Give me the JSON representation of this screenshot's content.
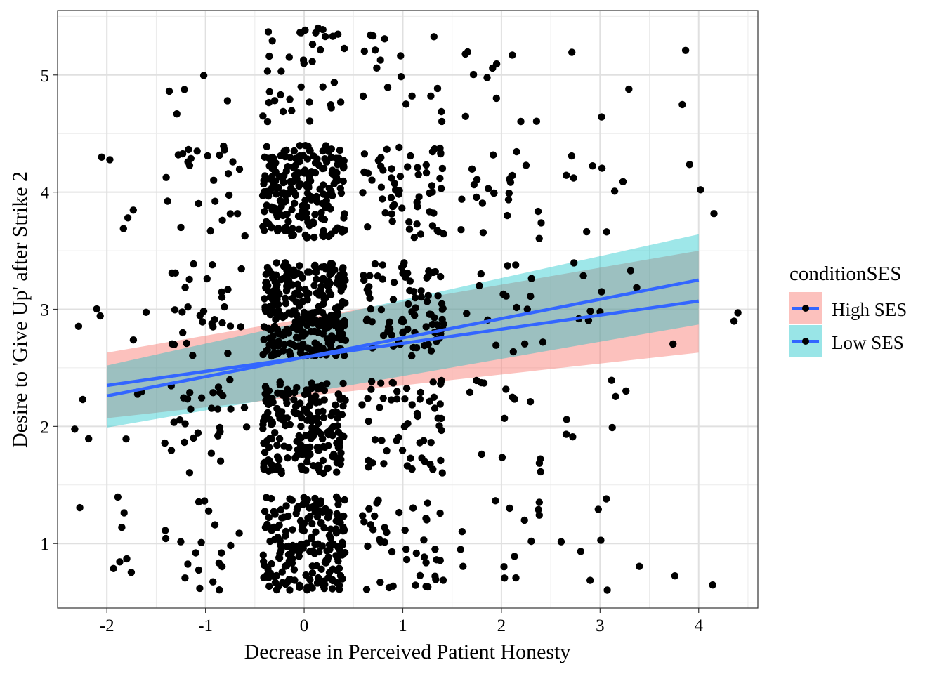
{
  "chart_data": {
    "type": "scatter",
    "title": "",
    "xlabel": "Decrease in Perceived Patient Honesty",
    "ylabel": "Desire to 'Give Up' after Strike 2",
    "xlim": [
      -2.5,
      4.6
    ],
    "ylim": [
      0.45,
      5.55
    ],
    "x_ticks": [
      -2,
      -1,
      0,
      1,
      2,
      3,
      4
    ],
    "y_ticks": [
      1,
      2,
      3,
      4,
      5
    ],
    "x_tick_labels": [
      "-2",
      "-1",
      "0",
      "1",
      "2",
      "3",
      "4"
    ],
    "y_tick_labels": [
      "1",
      "2",
      "3",
      "4",
      "5"
    ],
    "grid": true,
    "legend_position": "right",
    "legend": {
      "title": "conditionSES",
      "entries": [
        {
          "label": "High SES",
          "band_color": "#F8766D"
        },
        {
          "label": "Low SES",
          "band_color": "#00BFC4"
        }
      ]
    },
    "point_color": "#000000",
    "fit_line_color": "#3366FF",
    "regression_lines": [
      {
        "name": "High SES",
        "x": [
          -2,
          4
        ],
        "y": [
          2.35,
          3.07
        ],
        "band_lower": [
          2.07,
          2.63
        ],
        "band_upper": [
          2.63,
          3.5
        ],
        "band_color": "#F8766D"
      },
      {
        "name": "Low SES",
        "x": [
          -2,
          4
        ],
        "y": [
          2.26,
          3.25
        ],
        "band_lower": [
          1.99,
          2.87
        ],
        "band_upper": [
          2.52,
          3.64
        ],
        "band_color": "#00BFC4"
      }
    ],
    "x_jitter": 0.42,
    "y_jitter": 0.4,
    "point_groups": [
      {
        "x": -2,
        "y": 1,
        "n": 8
      },
      {
        "x": -2,
        "y": 2,
        "n": 6
      },
      {
        "x": -2,
        "y": 3,
        "n": 5
      },
      {
        "x": -2,
        "y": 4,
        "n": 5
      },
      {
        "x": -1,
        "y": 1,
        "n": 20
      },
      {
        "x": -1,
        "y": 2,
        "n": 30
      },
      {
        "x": -1,
        "y": 3,
        "n": 30
      },
      {
        "x": -1,
        "y": 4,
        "n": 26
      },
      {
        "x": -1,
        "y": 5,
        "n": 5
      },
      {
        "x": 0,
        "y": 1,
        "n": 200
      },
      {
        "x": 0,
        "y": 2,
        "n": 200
      },
      {
        "x": 0,
        "y": 3,
        "n": 310
      },
      {
        "x": 0,
        "y": 4,
        "n": 210
      },
      {
        "x": 0,
        "y": 5,
        "n": 38
      },
      {
        "x": 1,
        "y": 1,
        "n": 42
      },
      {
        "x": 1,
        "y": 2,
        "n": 55
      },
      {
        "x": 1,
        "y": 3,
        "n": 85
      },
      {
        "x": 1,
        "y": 4,
        "n": 60
      },
      {
        "x": 1,
        "y": 5,
        "n": 18
      },
      {
        "x": 2,
        "y": 1,
        "n": 14
      },
      {
        "x": 2,
        "y": 2,
        "n": 14
      },
      {
        "x": 2,
        "y": 3,
        "n": 16
      },
      {
        "x": 2,
        "y": 4,
        "n": 24
      },
      {
        "x": 2,
        "y": 5,
        "n": 11
      },
      {
        "x": 3,
        "y": 1,
        "n": 8
      },
      {
        "x": 3,
        "y": 2,
        "n": 7
      },
      {
        "x": 3,
        "y": 3,
        "n": 9
      },
      {
        "x": 3,
        "y": 4,
        "n": 9
      },
      {
        "x": 3,
        "y": 5,
        "n": 3
      },
      {
        "x": 4,
        "y": 1,
        "n": 2
      },
      {
        "x": 4,
        "y": 3,
        "n": 3
      },
      {
        "x": 4,
        "y": 4,
        "n": 3
      },
      {
        "x": 4,
        "y": 5,
        "n": 2
      }
    ]
  }
}
